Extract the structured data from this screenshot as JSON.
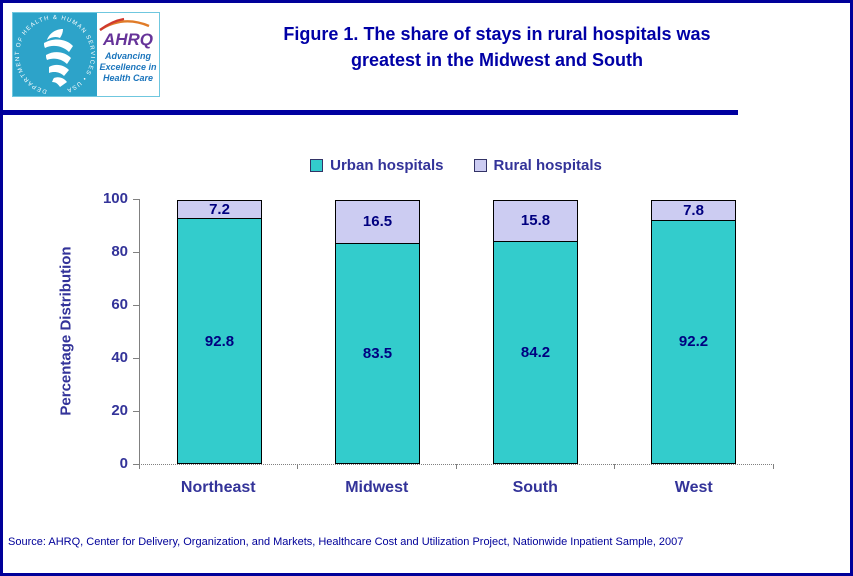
{
  "header": {
    "title_line1": "Figure 1.  The share of stays in rural hospitals was",
    "title_line2": "greatest in the Midwest and South",
    "logo": {
      "org_abbr": "AHRQ",
      "tagline_line1": "Advancing",
      "tagline_line2": "Excellence in",
      "tagline_line3": "Health Care",
      "seal_text": "DEPARTMENT OF HEALTH & HUMAN SERVICES • USA"
    }
  },
  "chart_data": {
    "type": "bar",
    "stacked": true,
    "title": "Figure 1.  The share of stays in rural hospitals was greatest in the Midwest and South",
    "categories": [
      "Northeast",
      "Midwest",
      "South",
      "West"
    ],
    "series": [
      {
        "name": "Urban hospitals",
        "color": "#33cccc",
        "values": [
          92.8,
          83.5,
          84.2,
          92.2
        ]
      },
      {
        "name": "Rural hospitals",
        "color": "#ccccf2",
        "values": [
          7.2,
          16.5,
          15.8,
          7.8
        ]
      }
    ],
    "xlabel": "",
    "ylabel": "Percentage Distribution",
    "ylim": [
      0,
      100
    ],
    "yticks": [
      0,
      20,
      40,
      60,
      80,
      100
    ],
    "legend_position": "top",
    "grid": false,
    "value_label_color": "#000080",
    "axis_text_color": "#333399"
  },
  "footer": {
    "source": "Source: AHRQ, Center for Delivery, Organization, and Markets, Healthcare Cost and Utilization Project, Nationwide Inpatient Sample, 2007"
  },
  "colors": {
    "frame_border": "#000099",
    "title_text": "#0000a6",
    "divider": "#0000a0",
    "seal_background": "#2da3c9",
    "ahrq_purple": "#663399",
    "tagline_blue": "#1b75bc"
  }
}
